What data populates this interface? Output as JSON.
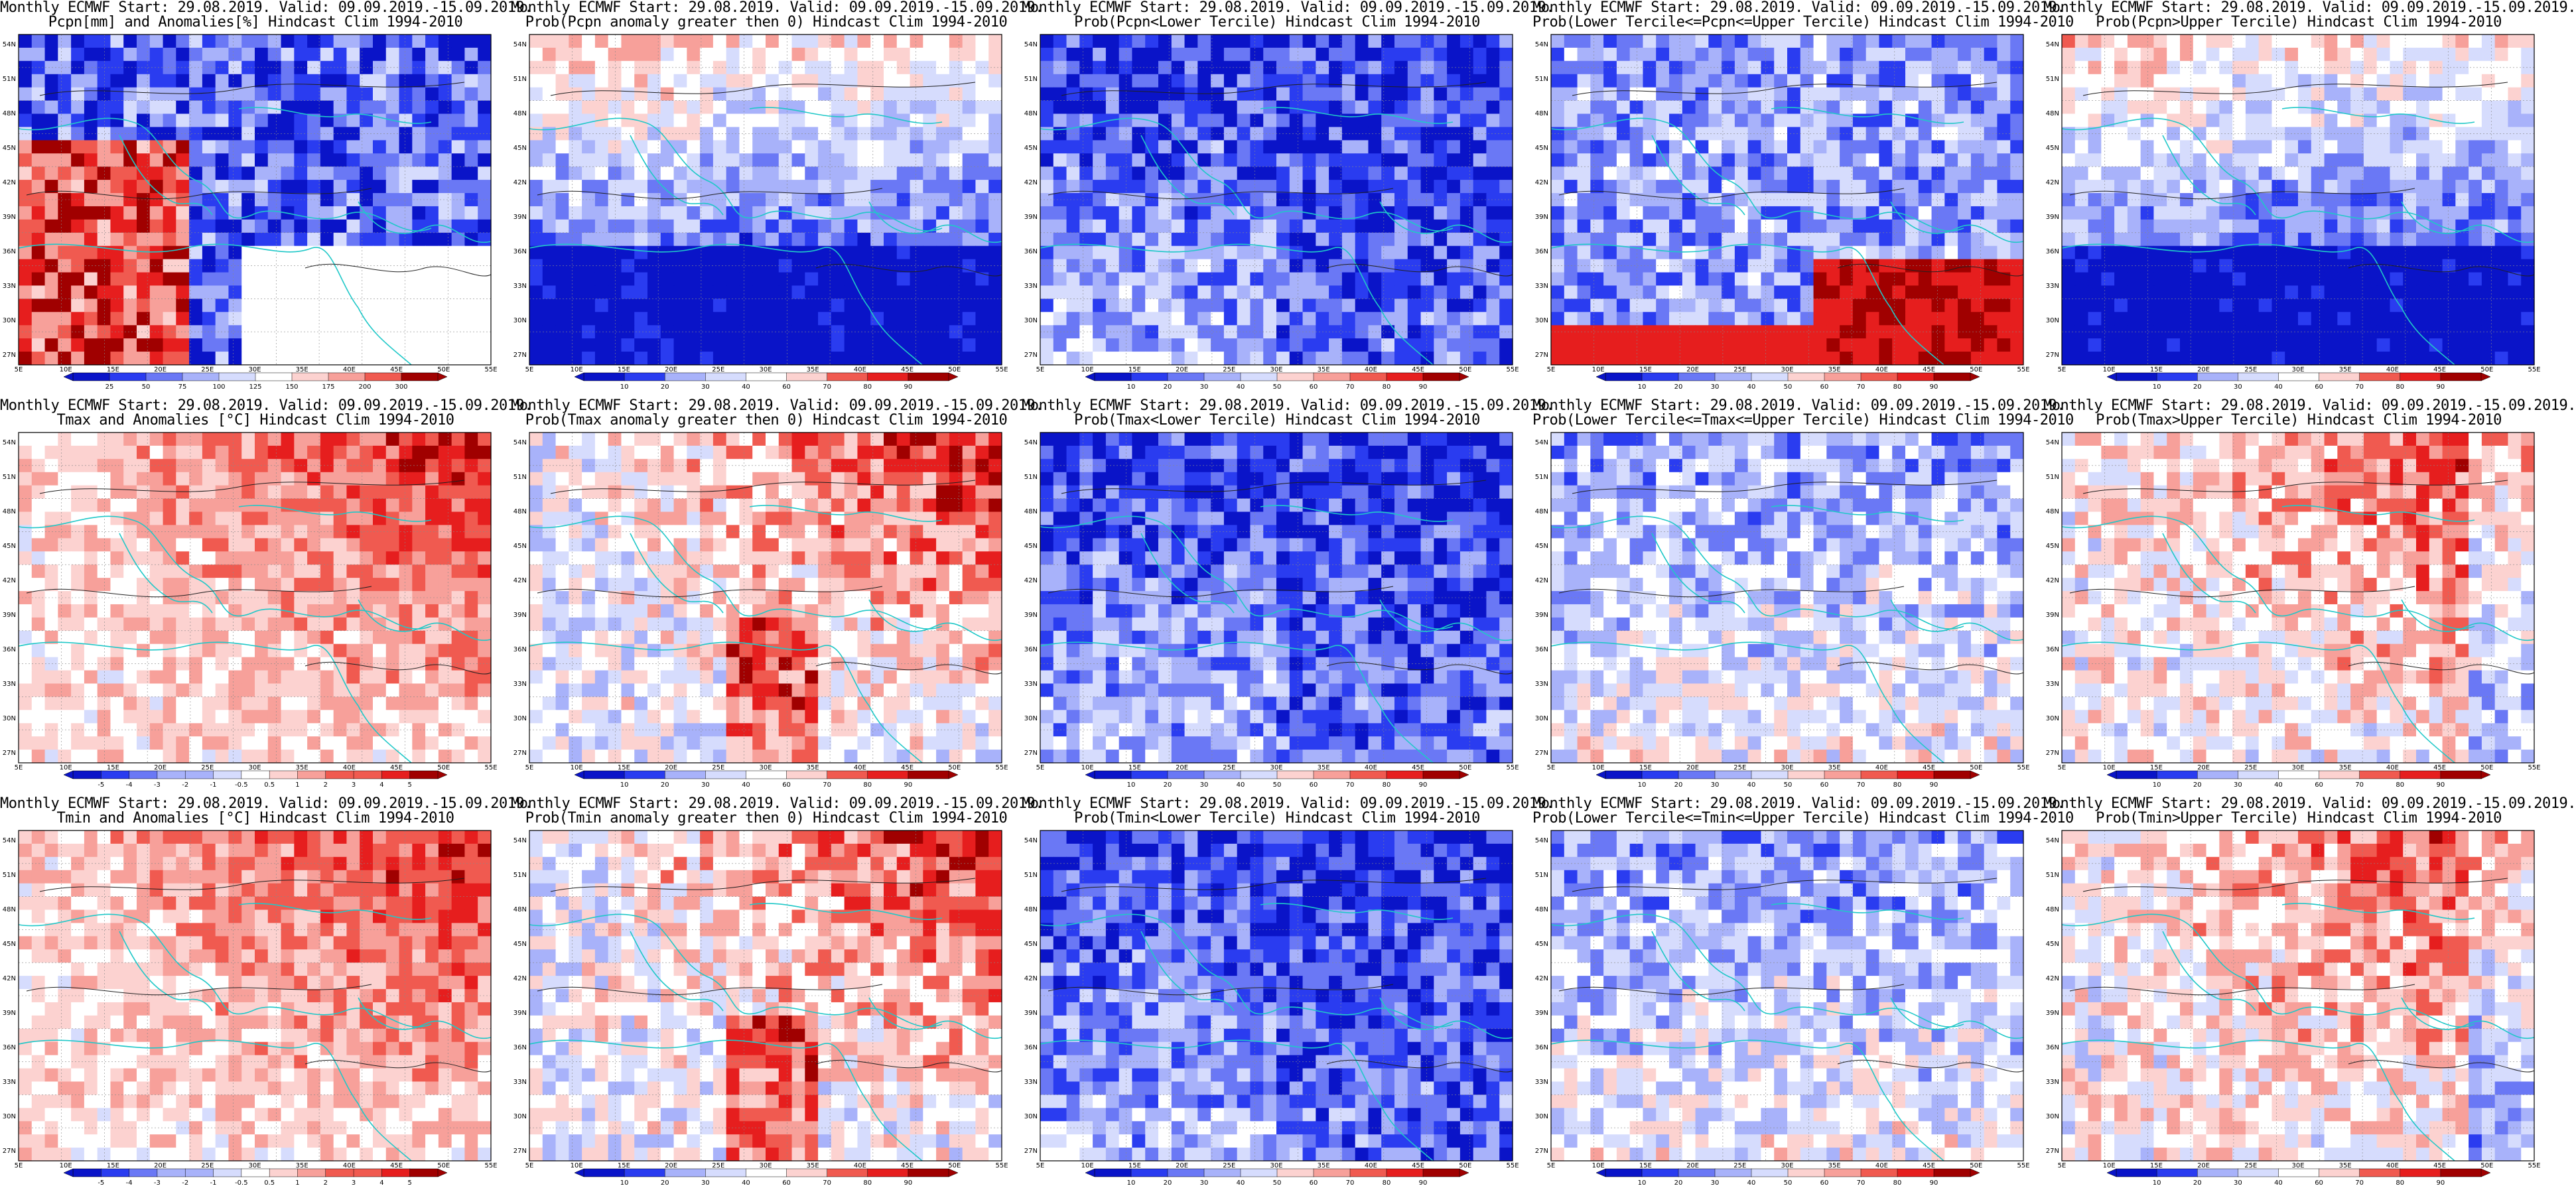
{
  "figure": {
    "columns": 5,
    "rows": 3,
    "panels": [
      {
        "title1": "Monthly ECMWF Start: 29.08.2019. Valid: 09.09.2019.-15.09.2019.",
        "title2": "Pcpn[mm] and Anomalies[%] Hindcast Clim 1994-2010",
        "scheme": "anom_precip",
        "colorbar": [
          "25",
          "50",
          "75",
          "100",
          "125",
          "150",
          "175",
          "200",
          "300"
        ]
      },
      {
        "title1": "Monthly ECMWF Start: 29.08.2019. Valid: 09.09.2019.-15.09.2019.",
        "title2": "Prob(Pcpn anomaly greater then 0) Hindcast Clim 1994-2010",
        "scheme": "prob_low",
        "colorbar": [
          "10",
          "20",
          "30",
          "40",
          "60",
          "70",
          "80",
          "90"
        ]
      },
      {
        "title1": "Monthly ECMWF Start: 29.08.2019. Valid: 09.09.2019.-15.09.2019.",
        "title2": "Prob(Pcpn<Lower Tercile) Hindcast Clim 1994-2010",
        "scheme": "prob_blue",
        "colorbar": [
          "10",
          "20",
          "30",
          "40",
          "50",
          "60",
          "70",
          "80",
          "90"
        ]
      },
      {
        "title1": "Monthly ECMWF Start: 29.08.2019. Valid: 09.09.2019.-15.09.2019.",
        "title2": "Prob(Lower Tercile<=Pcpn<=Upper Tercile) Hindcast Clim 1994-2010",
        "scheme": "prob_red_south",
        "colorbar": [
          "10",
          "20",
          "30",
          "40",
          "50",
          "60",
          "70",
          "80",
          "90"
        ]
      },
      {
        "title1": "Monthly ECMWF Start: 29.08.2019. Valid: 09.09.2019.-15.09.2019.",
        "title2": "Prob(Pcpn>Upper Tercile) Hindcast Clim 1994-2010",
        "scheme": "prob_low",
        "colorbar": [
          "10",
          "20",
          "30",
          "40",
          "60",
          "70",
          "80",
          "90"
        ]
      },
      {
        "title1": "Monthly ECMWF Start: 29.08.2019. Valid: 09.09.2019.-15.09.2019.",
        "title2": "Tmax and Anomalies [°C] Hindcast Clim 1994-2010",
        "scheme": "anom_temp",
        "colorbar": [
          "-5",
          "-4",
          "-3",
          "-2",
          "-1",
          "-0.5",
          "0.5",
          "1",
          "2",
          "3",
          "4",
          "5"
        ]
      },
      {
        "title1": "Monthly ECMWF Start: 29.08.2019. Valid: 09.09.2019.-15.09.2019.",
        "title2": "Prob(Tmax anomaly greater then 0) Hindcast Clim 1994-2010",
        "scheme": "prob_high",
        "colorbar": [
          "10",
          "20",
          "30",
          "40",
          "60",
          "70",
          "80",
          "90"
        ]
      },
      {
        "title1": "Monthly ECMWF Start: 29.08.2019. Valid: 09.09.2019.-15.09.2019.",
        "title2": "Prob(Tmax<Lower Tercile) Hindcast Clim 1994-2010",
        "scheme": "prob_blue",
        "colorbar": [
          "10",
          "20",
          "30",
          "40",
          "50",
          "60",
          "70",
          "80",
          "90"
        ]
      },
      {
        "title1": "Monthly ECMWF Start: 29.08.2019. Valid: 09.09.2019.-15.09.2019.",
        "title2": "Prob(Lower Tercile<=Tmax<=Upper Tercile) Hindcast Clim 1994-2010",
        "scheme": "prob_mixed",
        "colorbar": [
          "10",
          "20",
          "30",
          "40",
          "50",
          "60",
          "70",
          "80",
          "90"
        ]
      },
      {
        "title1": "Monthly ECMWF Start: 29.08.2019. Valid: 09.09.2019.-15.09.2019.",
        "title2": "Prob(Tmax>Upper Tercile) Hindcast Clim 1994-2010",
        "scheme": "prob_mid_red",
        "colorbar": [
          "10",
          "20",
          "30",
          "40",
          "60",
          "70",
          "80",
          "90"
        ]
      },
      {
        "title1": "Monthly ECMWF Start: 29.08.2019. Valid: 09.09.2019.-15.09.2019.",
        "title2": "Tmin and Anomalies [°C] Hindcast Clim 1994-2010",
        "scheme": "anom_temp",
        "colorbar": [
          "-5",
          "-4",
          "-3",
          "-2",
          "-1",
          "-0.5",
          "0.5",
          "1",
          "2",
          "3",
          "4",
          "5"
        ]
      },
      {
        "title1": "Monthly ECMWF Start: 29.08.2019. Valid: 09.09.2019.-15.09.2019.",
        "title2": "Prob(Tmin anomaly greater then 0) Hindcast Clim 1994-2010",
        "scheme": "prob_high",
        "colorbar": [
          "10",
          "20",
          "30",
          "40",
          "60",
          "70",
          "80",
          "90"
        ]
      },
      {
        "title1": "Monthly ECMWF Start: 29.08.2019. Valid: 09.09.2019.-15.09.2019.",
        "title2": "Prob(Tmin<Lower Tercile) Hindcast Clim 1994-2010",
        "scheme": "prob_blue",
        "colorbar": [
          "10",
          "20",
          "30",
          "40",
          "50",
          "60",
          "70",
          "80",
          "90"
        ]
      },
      {
        "title1": "Monthly ECMWF Start: 29.08.2019. Valid: 09.09.2019.-15.09.2019.",
        "title2": "Prob(Lower Tercile<=Tmin<=Upper Tercile) Hindcast Clim 1994-2010",
        "scheme": "prob_mixed",
        "colorbar": [
          "10",
          "20",
          "30",
          "40",
          "50",
          "60",
          "70",
          "80",
          "90"
        ]
      },
      {
        "title1": "Monthly ECMWF Start: 29.08.2019. Valid: 09.09.2019.-15.09.2019.",
        "title2": "Prob(Tmin>Upper Tercile) Hindcast Clim 1994-2010",
        "scheme": "prob_mid_red",
        "colorbar": [
          "10",
          "20",
          "30",
          "40",
          "60",
          "70",
          "80",
          "90"
        ]
      }
    ],
    "lat_labels": [
      "54N",
      "51N",
      "48N",
      "45N",
      "42N",
      "39N",
      "36N",
      "33N",
      "30N",
      "27N"
    ],
    "lon_labels": [
      "5E",
      "10E",
      "15E",
      "20E",
      "25E",
      "30E",
      "35E",
      "40E",
      "45E",
      "50E",
      "55E"
    ],
    "colors": {
      "dark_blue": "#0a14c8",
      "blue": "#2a3cf0",
      "mid_blue": "#6a78f5",
      "light_blue": "#a8b2fa",
      "pale_blue": "#d6dcfd",
      "white": "#ffffff",
      "pale_red": "#fcd2d0",
      "light_red": "#f7a09a",
      "mid_red": "#f05a50",
      "red": "#e61e1e",
      "dark_red": "#a00000",
      "coast": "#20c8c8",
      "contour": "#202020"
    }
  }
}
